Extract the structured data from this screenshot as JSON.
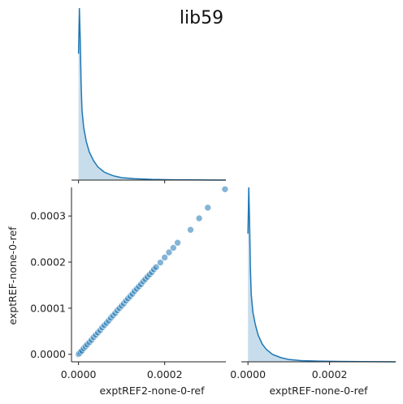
{
  "figure_title": "lib59",
  "colors": {
    "series": "#1f77b4",
    "kde_fill": "#1f77b4",
    "axis": "#222222",
    "background": "#ffffff"
  },
  "chart_data": [
    {
      "type": "area",
      "panel": "diag-x",
      "title": "",
      "xlabel": "",
      "ylabel": "",
      "xlim": [
        -1.63e-05,
        0.000342
      ],
      "note_kind": "kde",
      "x": [
        0.0,
        2e-06,
        4e-06,
        6e-06,
        8e-06,
        1.2e-05,
        1.8e-05,
        2.5e-05,
        3.5e-05,
        4.5e-05,
        6e-05,
        8e-05,
        0.0001,
        0.00013,
        0.00017,
        0.00022,
        0.00028,
        0.000342
      ],
      "y": [
        0.72,
        0.98,
        0.8,
        0.55,
        0.4,
        0.3,
        0.22,
        0.16,
        0.11,
        0.075,
        0.045,
        0.025,
        0.014,
        0.008,
        0.004,
        0.002,
        0.001,
        0.0
      ]
    },
    {
      "type": "scatter",
      "panel": "lower-left",
      "title": "",
      "xlabel": "exptREF2-none-0-ref",
      "ylabel": "exptREF-none-0-ref",
      "xlim": [
        -1.63e-05,
        0.000342
      ],
      "ylim": [
        -1.63e-05,
        0.000362
      ],
      "x_ticks": [
        "0.0000",
        "0.0002"
      ],
      "y_ticks": [
        "0.0000",
        "0.0001",
        "0.0002",
        "0.0003"
      ],
      "x": [
        0.0,
        2e-06,
        5e-06,
        8e-06,
        1.2e-05,
        1.6e-05,
        2e-05,
        2.5e-05,
        3e-05,
        3.5e-05,
        4e-05,
        4.5e-05,
        5e-05,
        5.5e-05,
        6e-05,
        6.5e-05,
        7e-05,
        7.5e-05,
        8e-05,
        8.5e-05,
        9e-05,
        9.5e-05,
        0.0001,
        0.000105,
        0.00011,
        0.000115,
        0.00012,
        0.000125,
        0.00013,
        0.000135,
        0.00014,
        0.000145,
        0.00015,
        0.000155,
        0.00016,
        0.000165,
        0.00017,
        0.000175,
        0.00018,
        0.00019,
        0.0002,
        0.00021,
        0.00022,
        0.00023,
        0.00026,
        0.00028,
        0.0003,
        0.00034
      ],
      "y": [
        0.0,
        2e-06,
        5e-06,
        8e-06,
        1.3e-05,
        1.7e-05,
        2.1e-05,
        2.6e-05,
        3.1e-05,
        3.7e-05,
        4.2e-05,
        4.7e-05,
        5.2e-05,
        5.8e-05,
        6.3e-05,
        6.8e-05,
        7.3e-05,
        7.9e-05,
        8.4e-05,
        8.9e-05,
        9.5e-05,
        0.0001,
        0.000105,
        0.00011,
        0.000116,
        0.000121,
        0.000126,
        0.000131,
        0.000137,
        0.000142,
        0.000147,
        0.000152,
        0.000158,
        0.000163,
        0.000168,
        0.000173,
        0.000178,
        0.000184,
        0.000189,
        0.000199,
        0.00021,
        0.000221,
        0.000231,
        0.000242,
        0.00027,
        0.000295,
        0.000318,
        0.000358
      ]
    },
    {
      "type": "area",
      "panel": "diag-y",
      "title": "",
      "xlabel": "exptREF-none-0-ref",
      "ylabel": "",
      "xlim": [
        -1.63e-05,
        0.000362
      ],
      "x_ticks": [
        "0.0000",
        "0.0002"
      ],
      "note_kind": "kde",
      "x": [
        0.0,
        2e-06,
        4e-06,
        6e-06,
        8e-06,
        1.2e-05,
        1.8e-05,
        2.5e-05,
        3.5e-05,
        4.5e-05,
        6e-05,
        8e-05,
        0.0001,
        0.00013,
        0.00017,
        0.00022,
        0.00028,
        0.000362
      ],
      "y": [
        0.72,
        0.98,
        0.78,
        0.52,
        0.38,
        0.28,
        0.21,
        0.15,
        0.1,
        0.07,
        0.042,
        0.024,
        0.013,
        0.007,
        0.004,
        0.002,
        0.001,
        0.0
      ]
    }
  ]
}
